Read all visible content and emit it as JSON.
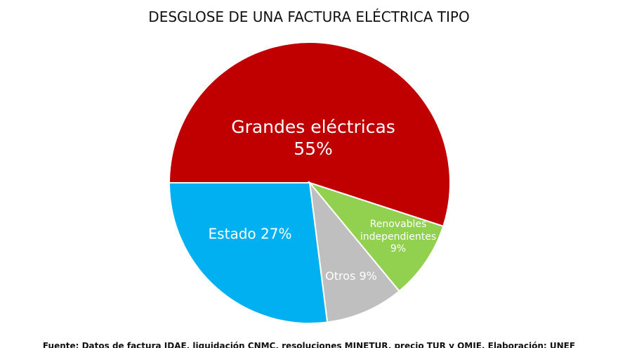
{
  "chart_data": {
    "type": "pie",
    "title": "DESGLOSE DE UNA FACTURA ELÉCTRICA TIPO",
    "categories": [
      "Grandes eléctricas",
      "Renovables independientes",
      "Otros",
      "Estado"
    ],
    "values": [
      55,
      9,
      9,
      27
    ],
    "value_labels": [
      "55%",
      "9%",
      "9%",
      "27%"
    ],
    "colors": [
      "#c00000",
      "#92d050",
      "#bfbfbf",
      "#00b0f0"
    ],
    "source": "Fuente: Datos de factura IDAE, liquidación CNMC, resoluciones MINETUR, precio TUR y OMIE. Elaboración: UNEF"
  }
}
